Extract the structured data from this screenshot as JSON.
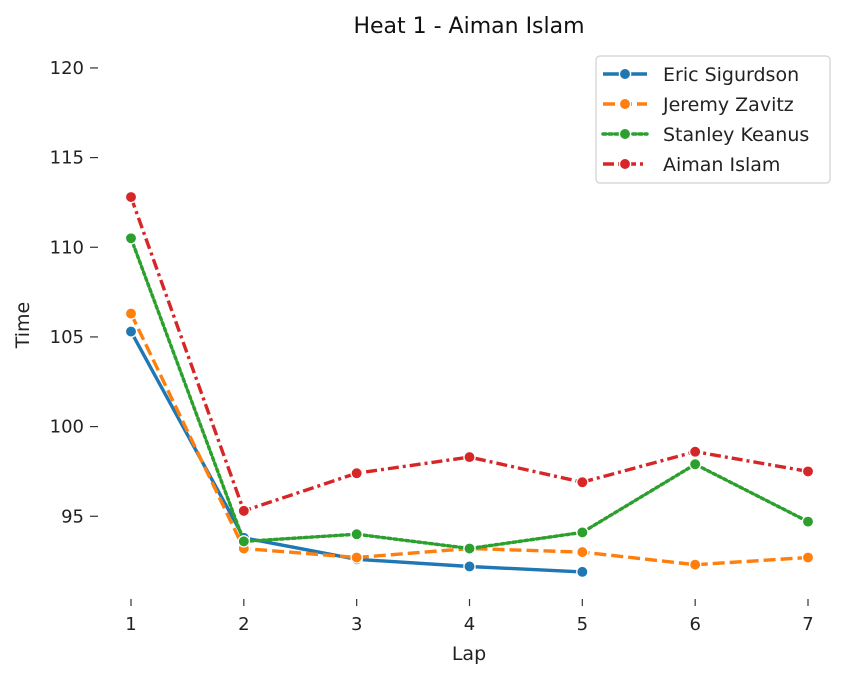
{
  "chart_data": {
    "type": "line",
    "title": "Heat 1 - Aiman Islam",
    "xlabel": "Lap",
    "ylabel": "Time",
    "x": [
      1,
      2,
      3,
      4,
      5,
      6,
      7
    ],
    "xlim": [
      1,
      7
    ],
    "ylim": [
      91,
      121
    ],
    "yticks": [
      95,
      100,
      105,
      110,
      115,
      120
    ],
    "grid": false,
    "legend_position": "top-right",
    "series": [
      {
        "name": "Eric Sigurdson",
        "color": "#1f77b4",
        "dash": "solid",
        "values": [
          105.3,
          93.8,
          92.6,
          92.2,
          91.9,
          null,
          null
        ]
      },
      {
        "name": "Jeremy Zavitz",
        "color": "#ff7f0e",
        "dash": "dashed",
        "values": [
          106.3,
          93.2,
          92.7,
          93.2,
          93.0,
          92.3,
          92.7
        ]
      },
      {
        "name": "Stanley Keanus",
        "color": "#2ca02c",
        "dash": "dotted",
        "values": [
          110.5,
          93.6,
          94.0,
          93.2,
          94.1,
          97.9,
          94.7
        ]
      },
      {
        "name": "Aiman Islam",
        "color": "#d62728",
        "dash": "dashdot",
        "values": [
          112.8,
          95.3,
          97.4,
          98.3,
          96.9,
          98.6,
          97.5
        ]
      }
    ]
  }
}
